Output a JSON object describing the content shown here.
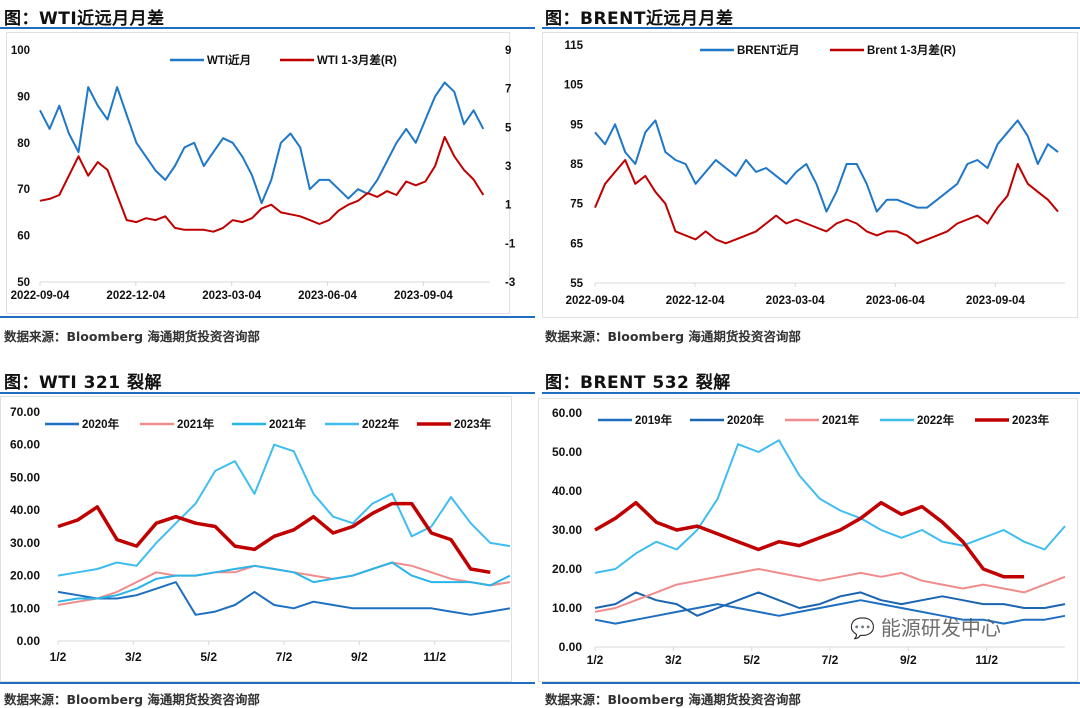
{
  "panels": [
    {
      "title": "图：WTI近远月月差",
      "source": "数据来源：Bloomberg   海通期货投资咨询部"
    },
    {
      "title": "图：BRENT近远月月差",
      "source": "数据来源：Bloomberg   海通期货投资咨询部"
    },
    {
      "title": "图：WTI 321 裂解",
      "source": "数据来源：Bloomberg   海通期货投资咨询部"
    },
    {
      "title": "图：BRENT 532 裂解",
      "source": "数据来源：Bloomberg   海通期货投资咨询部"
    }
  ],
  "watermark": "能源研发中心",
  "chart_data": [
    {
      "type": "line",
      "title": "WTI近远月月差",
      "xticks": [
        "2022-09-04",
        "2022-12-04",
        "2023-03-04",
        "2023-06-04",
        "2023-09-04"
      ],
      "ylim": [
        50,
        100
      ],
      "yticks": [
        "50",
        "60",
        "70",
        "80",
        "90",
        "100"
      ],
      "y2lim": [
        -3,
        9
      ],
      "y2ticks": [
        "-3",
        "-1",
        "1",
        "3",
        "5",
        "7",
        "9"
      ],
      "series": [
        {
          "name": "WTI近月",
          "color": "#1f77c8",
          "axis": "left",
          "values": [
            87,
            83,
            88,
            82,
            78,
            92,
            88,
            85,
            92,
            86,
            80,
            77,
            74,
            72,
            75,
            79,
            80,
            75,
            78,
            81,
            80,
            77,
            73,
            67,
            72,
            80,
            82,
            79,
            70,
            72,
            72,
            70,
            68,
            70,
            69,
            72,
            76,
            80,
            83,
            80,
            85,
            90,
            93,
            91,
            84,
            87,
            83
          ]
        },
        {
          "name": "WTI 1-3月差(R)",
          "color": "#c00000",
          "axis": "right",
          "values": [
            1.2,
            1.3,
            1.5,
            2.5,
            3.5,
            2.5,
            3.2,
            2.8,
            1.5,
            0.2,
            0.1,
            0.3,
            0.2,
            0.4,
            -0.2,
            -0.3,
            -0.3,
            -0.3,
            -0.4,
            -0.2,
            0.2,
            0.1,
            0.3,
            0.8,
            1.0,
            0.6,
            0.5,
            0.4,
            0.2,
            0.0,
            0.2,
            0.7,
            1.0,
            1.2,
            1.6,
            1.4,
            1.7,
            1.5,
            2.2,
            2.0,
            2.2,
            3.0,
            4.5,
            3.5,
            2.8,
            2.3,
            1.5
          ]
        }
      ]
    },
    {
      "type": "line",
      "title": "BRENT近远月月差",
      "xticks": [
        "2022-09-04",
        "2022-12-04",
        "2023-03-04",
        "2023-06-04",
        "2023-09-04"
      ],
      "ylim": [
        55,
        115
      ],
      "yticks": [
        "55",
        "65",
        "75",
        "85",
        "95",
        "105",
        "115"
      ],
      "series": [
        {
          "name": "BRENT近月",
          "color": "#1f77c8",
          "values": [
            93,
            90,
            95,
            88,
            85,
            93,
            96,
            88,
            86,
            85,
            80,
            83,
            86,
            84,
            82,
            86,
            83,
            84,
            82,
            80,
            83,
            85,
            80,
            73,
            78,
            85,
            85,
            80,
            73,
            76,
            76,
            75,
            74,
            74,
            76,
            78,
            80,
            85,
            86,
            84,
            90,
            93,
            96,
            92,
            85,
            90,
            88
          ]
        },
        {
          "name": "Brent 1-3月差(R)",
          "color": "#c00000",
          "values": [
            74,
            80,
            83,
            86,
            80,
            82,
            78,
            75,
            68,
            67,
            66,
            68,
            66,
            65,
            66,
            67,
            68,
            70,
            72,
            70,
            71,
            70,
            69,
            68,
            70,
            71,
            70,
            68,
            67,
            68,
            68,
            67,
            65,
            66,
            67,
            68,
            70,
            71,
            72,
            70,
            74,
            77,
            85,
            80,
            78,
            76,
            73
          ]
        }
      ]
    },
    {
      "type": "line",
      "title": "WTI 321 裂解",
      "xticks": [
        "1/2",
        "3/2",
        "5/2",
        "7/2",
        "9/2",
        "11/2"
      ],
      "ylim": [
        0,
        70
      ],
      "yticks": [
        "0.00",
        "10.00",
        "20.00",
        "30.00",
        "40.00",
        "50.00",
        "60.00",
        "70.00"
      ],
      "series": [
        {
          "name": "2020年",
          "color": "#1f6fc0",
          "width": 2,
          "values": [
            15,
            14,
            13,
            13,
            14,
            16,
            18,
            8,
            9,
            11,
            15,
            11,
            10,
            12,
            11,
            10,
            10,
            10,
            10,
            10,
            9,
            8,
            9,
            10
          ]
        },
        {
          "name": "2021年",
          "color": "#f08c8c",
          "width": 2,
          "values": [
            11,
            12,
            13,
            15,
            18,
            21,
            20,
            20,
            21,
            21,
            23,
            22,
            21,
            20,
            19,
            20,
            22,
            24,
            23,
            21,
            19,
            18,
            17,
            18
          ]
        },
        {
          "name": "2021年",
          "color": "#29b5e8",
          "width": 2,
          "values": [
            12,
            13,
            13,
            14,
            16,
            19,
            20,
            20,
            21,
            22,
            23,
            22,
            21,
            18,
            19,
            20,
            22,
            24,
            20,
            18,
            18,
            18,
            17,
            20
          ]
        },
        {
          "name": "2022年",
          "color": "#3fbdf0",
          "width": 2,
          "values": [
            20,
            21,
            22,
            24,
            23,
            30,
            36,
            42,
            52,
            55,
            45,
            60,
            58,
            45,
            38,
            36,
            42,
            45,
            32,
            35,
            44,
            36,
            30,
            29
          ]
        },
        {
          "name": "2023年",
          "color": "#c00000",
          "width": 3.5,
          "values": [
            35,
            37,
            41,
            31,
            29,
            36,
            38,
            36,
            35,
            29,
            28,
            32,
            34,
            38,
            33,
            35,
            39,
            42,
            42,
            33,
            31,
            22,
            21
          ]
        }
      ]
    },
    {
      "type": "line",
      "title": "BRENT 532 裂解",
      "xticks": [
        "1/2",
        "3/2",
        "5/2",
        "7/2",
        "9/2",
        "11/2"
      ],
      "ylim": [
        0,
        60
      ],
      "yticks": [
        "0.00",
        "10.00",
        "20.00",
        "30.00",
        "40.00",
        "50.00",
        "60.00"
      ],
      "series": [
        {
          "name": "2019年",
          "color": "#1f6fc0",
          "width": 2,
          "values": [
            7,
            6,
            7,
            8,
            9,
            10,
            11,
            10,
            9,
            8,
            9,
            10,
            11,
            12,
            11,
            10,
            9,
            8,
            7,
            7,
            6,
            7,
            7,
            8
          ]
        },
        {
          "name": "2020年",
          "color": "#1a64b0",
          "width": 2,
          "values": [
            10,
            11,
            14,
            12,
            11,
            8,
            10,
            12,
            14,
            12,
            10,
            11,
            13,
            14,
            12,
            11,
            12,
            13,
            12,
            11,
            11,
            10,
            10,
            11
          ]
        },
        {
          "name": "2021年",
          "color": "#f08c8c",
          "width": 2,
          "values": [
            9,
            10,
            12,
            14,
            16,
            17,
            18,
            19,
            20,
            19,
            18,
            17,
            18,
            19,
            18,
            19,
            17,
            16,
            15,
            16,
            15,
            14,
            16,
            18
          ]
        },
        {
          "name": "2022年",
          "color": "#3fbdf0",
          "width": 2,
          "values": [
            19,
            20,
            24,
            27,
            25,
            30,
            38,
            52,
            50,
            53,
            44,
            38,
            35,
            33,
            30,
            28,
            30,
            27,
            26,
            28,
            30,
            27,
            25,
            31
          ]
        },
        {
          "name": "2023年",
          "color": "#c00000",
          "width": 3.5,
          "values": [
            30,
            33,
            37,
            32,
            30,
            31,
            29,
            27,
            25,
            27,
            26,
            28,
            30,
            33,
            37,
            34,
            36,
            32,
            27,
            20,
            18,
            18
          ]
        }
      ]
    }
  ]
}
